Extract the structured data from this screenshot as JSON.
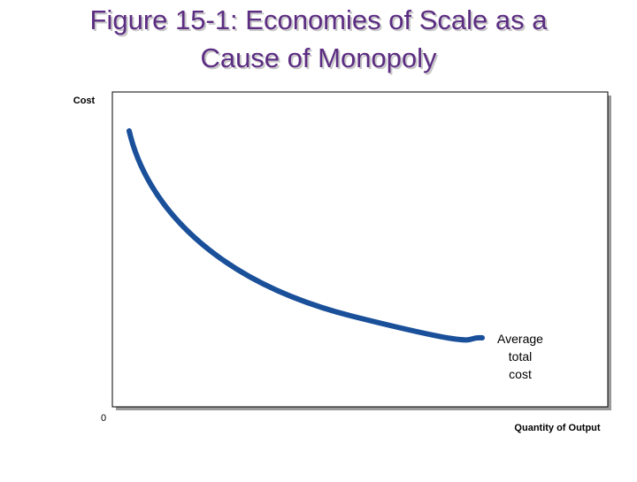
{
  "title": {
    "lines": [
      "Figure 15-1: Economies of Scale as a",
      "Cause of Monopoly"
    ]
  },
  "axes": {
    "y_label": "Cost",
    "origin_label": "0",
    "x_label": "Quantity of Output"
  },
  "curve": {
    "label_lines": [
      "Average",
      "total",
      "cost"
    ]
  }
}
